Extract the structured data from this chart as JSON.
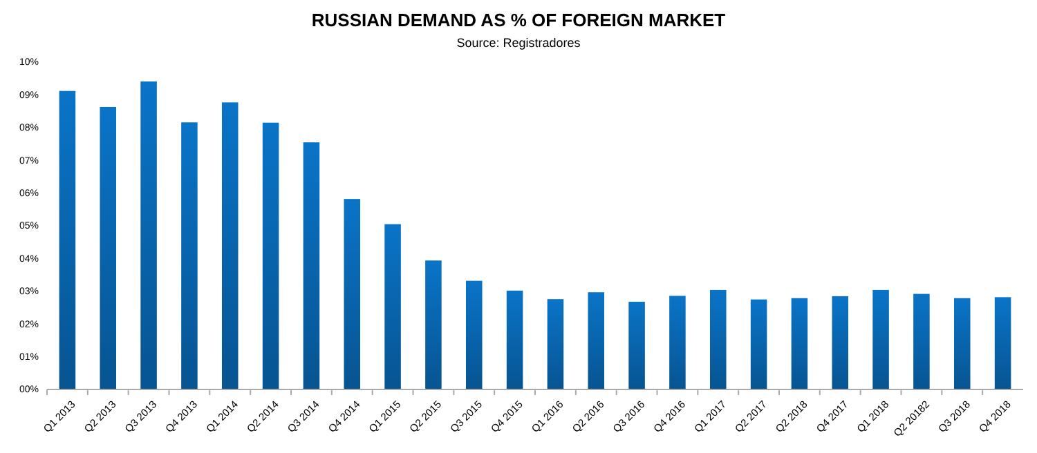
{
  "chart_data": {
    "type": "bar",
    "title": "RUSSIAN DEMAND AS % OF FOREIGN MARKET",
    "subtitle": "Source: Registradores",
    "categories": [
      "Q1 2013",
      "Q2 2013",
      "Q3 2013",
      "Q4 2013",
      "Q1 2014",
      "Q2 2014",
      "Q3 2014",
      "Q4 2014",
      "Q1 2015",
      "Q2 2015",
      "Q3 2015",
      "Q4 2015",
      "Q1 2016",
      "Q2 2016",
      "Q3 2016",
      "Q4 2016",
      "Q1 2017",
      "Q2 2017",
      "Q2 2018",
      "Q4 2017",
      "Q1 2018",
      "Q2 20182",
      "Q3 2018",
      "Q4 2018"
    ],
    "values": [
      9.12,
      8.63,
      9.41,
      8.16,
      8.77,
      8.15,
      7.55,
      5.82,
      5.05,
      3.94,
      3.32,
      3.02,
      2.76,
      2.97,
      2.68,
      2.86,
      3.04,
      2.75,
      2.79,
      2.85,
      3.04,
      2.92,
      2.79,
      2.82
    ],
    "color": "#0a74c8",
    "ylim": [
      0,
      10
    ],
    "yticks": [
      {
        "value": 0,
        "label": "00%"
      },
      {
        "value": 1,
        "label": "01%"
      },
      {
        "value": 2,
        "label": "02%"
      },
      {
        "value": 3,
        "label": "03%"
      },
      {
        "value": 4,
        "label": "04%"
      },
      {
        "value": 5,
        "label": "05%"
      },
      {
        "value": 6,
        "label": "06%"
      },
      {
        "value": 7,
        "label": "07%"
      },
      {
        "value": 8,
        "label": "08%"
      },
      {
        "value": 9,
        "label": "09%"
      },
      {
        "value": 10,
        "label": "10%"
      }
    ]
  }
}
